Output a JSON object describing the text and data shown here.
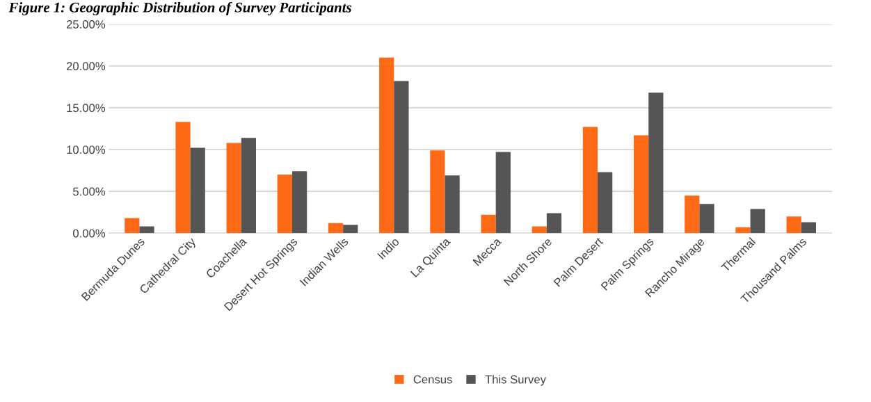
{
  "chart_data": {
    "type": "bar",
    "title": "Figure 1: Geographic Distribution of Survey Participants",
    "categories": [
      "Bermuda Dunes",
      "Cathedral City",
      "Coachella",
      "Desert Hot Springs",
      "Indian Wells",
      "Indio",
      "La Quinta",
      "Mecca",
      "North Shore",
      "Palm Desert",
      "Palm Springs",
      "Rancho Mirage",
      "Thermal",
      "Thousand Palms"
    ],
    "series": [
      {
        "name": "Census",
        "color": "#ff6a17",
        "values": [
          1.8,
          13.3,
          10.8,
          7.0,
          1.2,
          21.0,
          9.9,
          2.2,
          0.8,
          12.7,
          11.7,
          4.5,
          0.7,
          2.0
        ]
      },
      {
        "name": "This Survey",
        "color": "#555555",
        "values": [
          0.8,
          10.2,
          11.4,
          7.4,
          1.0,
          18.2,
          6.9,
          9.7,
          2.4,
          7.3,
          16.8,
          3.5,
          2.9,
          1.3
        ]
      }
    ],
    "ylim": [
      0,
      25
    ],
    "yticks": [
      {
        "value": 0,
        "label": "0.00%"
      },
      {
        "value": 5,
        "label": "5.00%"
      },
      {
        "value": 10,
        "label": "10.00%"
      },
      {
        "value": 15,
        "label": "15.00%"
      },
      {
        "value": 20,
        "label": "20.00%"
      },
      {
        "value": 25,
        "label": "25.00%"
      }
    ],
    "grid": "y",
    "legend": "bottom"
  }
}
